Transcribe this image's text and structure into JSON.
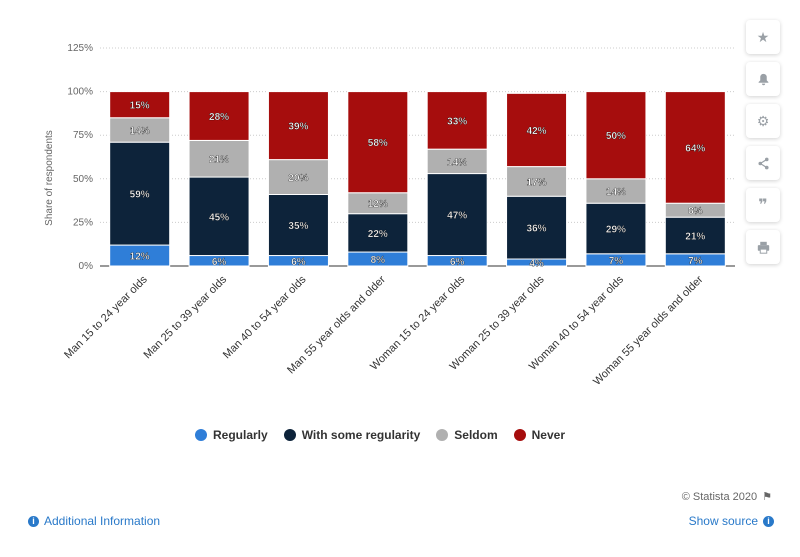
{
  "chart_data": {
    "type": "bar",
    "stacked": true,
    "categories": [
      "Man 15 to 24 year olds",
      "Man 25 to 39 year olds",
      "Man 40 to 54 year olds",
      "Man 55 year olds and older",
      "Woman 15 to 24 year olds",
      "Woman 25 to 39 year olds",
      "Woman 40 to 54 year olds",
      "Woman 55 year olds and older"
    ],
    "series": [
      {
        "name": "Regularly",
        "color": "#2f7ed8",
        "values": [
          12,
          6,
          6,
          8,
          6,
          4,
          7,
          7
        ],
        "labels": [
          "12%",
          "6%",
          "6%",
          "8%",
          "6%",
          "4%",
          "7%",
          "7%"
        ]
      },
      {
        "name": "With some regularity",
        "color": "#0d233a",
        "values": [
          59,
          45,
          35,
          22,
          47,
          36,
          29,
          21
        ],
        "labels": [
          "59%",
          "45%",
          "35%",
          "22%",
          "47%",
          "36%",
          "29%",
          "21%"
        ]
      },
      {
        "name": "Seldom",
        "color": "#b0b0b0",
        "values": [
          14,
          21,
          20,
          12,
          14,
          17,
          14,
          8
        ],
        "labels": [
          "14%",
          "21%",
          "20%",
          "12%",
          "14%",
          "17%",
          "14%",
          "8%"
        ]
      },
      {
        "name": "Never",
        "color": "#a60d0d",
        "values": [
          15,
          28,
          39,
          58,
          33,
          42,
          50,
          64
        ],
        "labels": [
          "15%",
          "28%",
          "39%",
          "58%",
          "33%",
          "42%",
          "50%",
          "64%"
        ]
      }
    ],
    "ylabel": "Share of respondents",
    "xlabel": "",
    "ylim": [
      0,
      125
    ],
    "yticks": [
      0,
      25,
      50,
      75,
      100,
      125
    ],
    "ytick_labels": [
      "0%",
      "25%",
      "50%",
      "75%",
      "100%",
      "125%"
    ],
    "grid": true,
    "legend_position": "bottom"
  },
  "footer": {
    "additional_info": "Additional Information",
    "copyright": "© Statista 2020",
    "show_source": "Show source"
  },
  "sidebar": {
    "icons": [
      "star-icon",
      "bell-icon",
      "gear-icon",
      "share-icon",
      "quote-icon",
      "print-icon"
    ]
  }
}
